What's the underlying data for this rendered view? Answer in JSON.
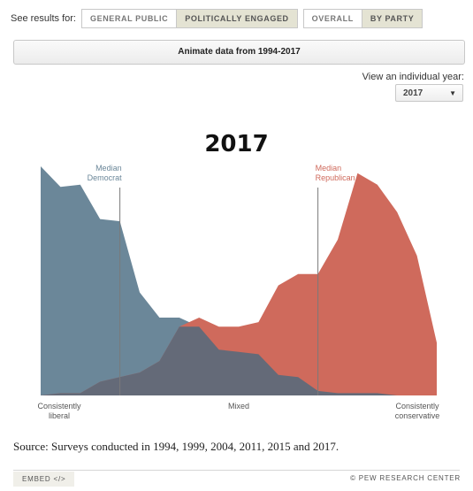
{
  "filters": {
    "label": "See results for:",
    "audience": [
      "GENERAL PUBLIC",
      "POLITICALLY ENGAGED"
    ],
    "audience_active": 1,
    "view": [
      "OVERALL",
      "BY PARTY"
    ],
    "view_active": 1
  },
  "animate_label": "Animate data from 1994-2017",
  "year_selector": {
    "label": "View an individual year:",
    "value": "2017"
  },
  "colors": {
    "democrat": "#6b8799",
    "republican": "#cf6a5c",
    "overlap": "#646a78",
    "rule": "#7a7a7a"
  },
  "chart_data": {
    "type": "area",
    "title": "2017",
    "x": [
      -10,
      -9,
      -8,
      -7,
      -6,
      -5,
      -4,
      -3,
      -2,
      -1,
      0,
      1,
      2,
      3,
      4,
      5,
      6,
      7,
      8,
      9,
      10
    ],
    "x_ticks": [
      {
        "value": -10,
        "label": [
          "Consistently",
          "liberal"
        ]
      },
      {
        "value": 0,
        "label": [
          "Mixed"
        ]
      },
      {
        "value": 10,
        "label": [
          "Consistently",
          "conservative"
        ]
      }
    ],
    "ylim": [
      0,
      100
    ],
    "series": [
      {
        "key": "democrat",
        "values": [
          100,
          91,
          92,
          77,
          76,
          45,
          34,
          34,
          30,
          20,
          19,
          18,
          9,
          8,
          2,
          1,
          1,
          1,
          0,
          0,
          0
        ]
      },
      {
        "key": "republican",
        "values": [
          0,
          1,
          1,
          6,
          8,
          10,
          15,
          30,
          34,
          30,
          30,
          32,
          48,
          53,
          53,
          68,
          97,
          92,
          80,
          61,
          23
        ]
      }
    ],
    "medians": [
      {
        "label": [
          "Median",
          "Democrat"
        ],
        "x": -6
      },
      {
        "label": [
          "Median",
          "Republican"
        ],
        "x": 4
      }
    ]
  },
  "source": "Source: Surveys conducted in 1994, 1999, 2004, 2011, 2015 and 2017.",
  "embed_label": "EMBED </>",
  "credit": "© PEW RESEARCH CENTER"
}
